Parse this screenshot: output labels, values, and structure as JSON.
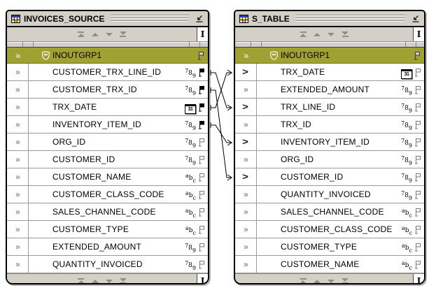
{
  "windows": [
    {
      "id": "invoices_source",
      "title": "INVOICES_SOURCE",
      "group": {
        "name": "INOUTGRP1"
      },
      "fields": [
        {
          "name": "CUSTOMER_TRX_LINE_ID",
          "type": "number"
        },
        {
          "name": "CUSTOMER_TRX_ID",
          "type": "number"
        },
        {
          "name": "TRX_DATE",
          "type": "date"
        },
        {
          "name": "INVENTORY_ITEM_ID",
          "type": "number"
        },
        {
          "name": "ORG_ID",
          "type": "number"
        },
        {
          "name": "CUSTOMER_ID",
          "type": "number"
        },
        {
          "name": "CUSTOMER_NAME",
          "type": "text"
        },
        {
          "name": "CUSTOMER_CLASS_CODE",
          "type": "text"
        },
        {
          "name": "SALES_CHANNEL_CODE",
          "type": "text"
        },
        {
          "name": "CUSTOMER_TYPE",
          "type": "text"
        },
        {
          "name": "EXTENDED_AMOUNT",
          "type": "number"
        },
        {
          "name": "QUANTITY_INVOICED",
          "type": "number"
        }
      ]
    },
    {
      "id": "s_table",
      "title": "S_TABLE",
      "group": {
        "name": "INOUTGRP1"
      },
      "fields": [
        {
          "name": "TRX_DATE",
          "type": "date"
        },
        {
          "name": "EXTENDED_AMOUNT",
          "type": "number"
        },
        {
          "name": "TRX_LINE_ID",
          "type": "number"
        },
        {
          "name": "TRX_ID",
          "type": "number"
        },
        {
          "name": "INVENTORY_ITEM_ID",
          "type": "number"
        },
        {
          "name": "ORG_ID",
          "type": "number"
        },
        {
          "name": "CUSTOMER_ID",
          "type": "number"
        },
        {
          "name": "QUANTITY_INVOICED",
          "type": "number"
        },
        {
          "name": "SALES_CHANNEL_CODE",
          "type": "text"
        },
        {
          "name": "CUSTOMER_CLASS_CODE",
          "type": "text"
        },
        {
          "name": "CUSTOMER_TYPE",
          "type": "text"
        },
        {
          "name": "CUSTOMER_NAME",
          "type": "text"
        }
      ]
    }
  ],
  "mappings": [
    {
      "from": "CUSTOMER_TRX_LINE_ID",
      "to": "TRX_LINE_ID"
    },
    {
      "from": "CUSTOMER_TRX_ID",
      "to": "CUSTOMER_ID"
    },
    {
      "from": "TRX_DATE",
      "to": "TRX_DATE"
    },
    {
      "from": "INVENTORY_ITEM_ID",
      "to": "INVENTORY_ITEM_ID"
    }
  ],
  "icons": {
    "table_operator": "grid-table",
    "collapse_window": "arrow-down-left-underlined",
    "move_to_top": "triangle-up-with-bar",
    "move_up": "triangle-up",
    "move_down": "triangle-down",
    "move_to_bottom": "triangle-down-with-bar",
    "row_height_handle": "i-beam-cursor",
    "group_shield": "shield-with-minus",
    "expand_chevron_unmapped": "double-chevron-right",
    "expand_chevron_mapped": "bold-chevron-right",
    "connected_flag": "filled-flag",
    "unconnected_flag": "outline-flag",
    "number_type": "789",
    "text_type": "abc",
    "date_type": "calendar-31"
  },
  "colors": {
    "group_header_bg": "#a0a132",
    "titlebar_bg": "#d4d0c8",
    "window_border": "#000000",
    "row_bg": "#ffffff",
    "row_separator": "#9a9a9a",
    "disabled_arrow": "#8f8f89",
    "connector": "#000000"
  }
}
